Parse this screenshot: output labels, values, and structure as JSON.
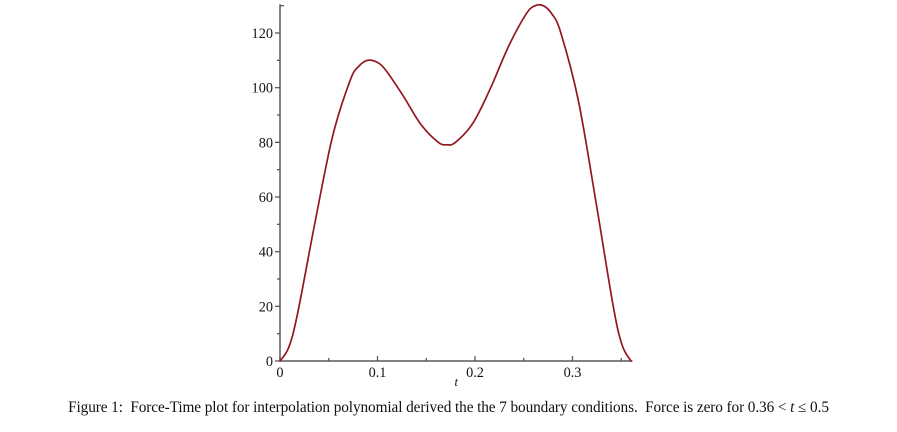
{
  "figure": {
    "caption": {
      "part1": "Figure 1:  Force-Time plot for interpolation polynomial derived the the 7 boundary conditions.  Force is zero for 0.36 < ",
      "variable": "t",
      "part2": " ≤ 0.5"
    }
  },
  "chart_data": {
    "type": "line",
    "title": "",
    "xlabel": "t",
    "ylabel": "",
    "xlim": [
      0,
      0.3615
    ],
    "ylim": [
      0,
      130.5
    ],
    "grid": false,
    "legend": null,
    "x_major_ticks": [
      0,
      0.1,
      0.2,
      0.3
    ],
    "x_major_labels": [
      "0",
      "0.1",
      "0.2",
      "0.3"
    ],
    "x_minor_ticks": [
      0.05,
      0.15,
      0.25,
      0.35
    ],
    "y_major_ticks": [
      0,
      20,
      40,
      60,
      80,
      100,
      120
    ],
    "y_major_labels": [
      "0",
      "20",
      "40",
      "60",
      "80",
      "100",
      "120"
    ],
    "y_minor_ticks": [
      10,
      30,
      50,
      70,
      90,
      110
    ],
    "y_axis_top_tick": 130,
    "axis_color": "#58585a",
    "label_color": "#141414",
    "series": [
      {
        "name": "Force-Time curve",
        "color": "#93171f",
        "stroke_width": 1.7,
        "points": [
          [
            0.0,
            0.0
          ],
          [
            0.009,
            5.0
          ],
          [
            0.018,
            17.3
          ],
          [
            0.036,
            50.9
          ],
          [
            0.054,
            82.3
          ],
          [
            0.072,
            102.7
          ],
          [
            0.081,
            107.9
          ],
          [
            0.09,
            110.0
          ],
          [
            0.099,
            109.4
          ],
          [
            0.108,
            106.6
          ],
          [
            0.126,
            97.2
          ],
          [
            0.144,
            86.8
          ],
          [
            0.162,
            80.1
          ],
          [
            0.171,
            79.1
          ],
          [
            0.18,
            80.0
          ],
          [
            0.198,
            87.1
          ],
          [
            0.216,
            99.9
          ],
          [
            0.234,
            114.8
          ],
          [
            0.252,
            126.7
          ],
          [
            0.261,
            129.9
          ],
          [
            0.27,
            130.0
          ],
          [
            0.279,
            126.9
          ],
          [
            0.288,
            120.1
          ],
          [
            0.306,
            95.3
          ],
          [
            0.324,
            58.3
          ],
          [
            0.342,
            19.6
          ],
          [
            0.351,
            5.7
          ],
          [
            0.36,
            0.0
          ]
        ]
      }
    ]
  }
}
